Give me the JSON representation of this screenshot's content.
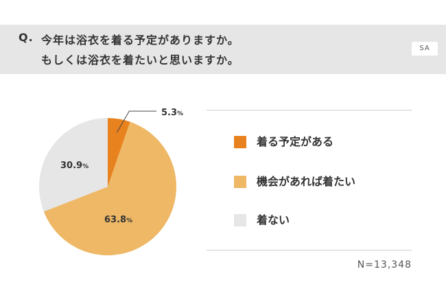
{
  "question": {
    "prefix": "Q.",
    "line1": "今年は浴衣を着る予定がありますか。",
    "line2": "もしくは浴衣を着たいと思いますか。",
    "badge": "SA"
  },
  "chart_data": {
    "type": "pie",
    "slices": [
      {
        "label": "着る予定がある",
        "value": 5.3,
        "value_label": "5.3",
        "color": "#e8821e"
      },
      {
        "label": "機会があれば着たい",
        "value": 63.8,
        "value_label": "63.8",
        "color": "#eeb866"
      },
      {
        "label": "着ない",
        "value": 30.9,
        "value_label": "30.9",
        "color": "#e6e6e6"
      }
    ],
    "unit": "%",
    "legend_position": "right",
    "n_label": "N=13,348"
  }
}
